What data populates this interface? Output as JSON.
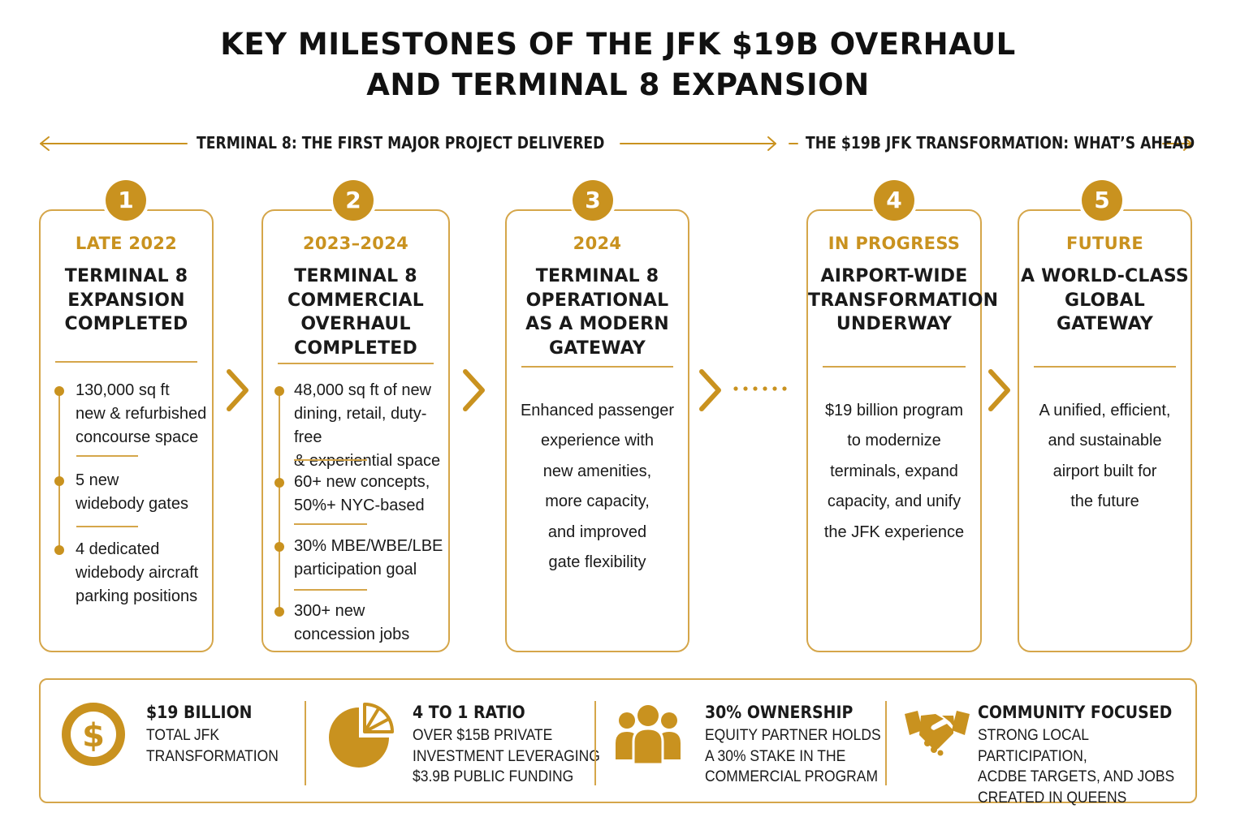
{
  "title": {
    "line1": "KEY MILESTONES OF THE JFK $19B OVERHAUL",
    "line2": "AND TERMINAL 8 EXPANSION"
  },
  "phases": {
    "left": "TERMINAL 8: THE FIRST MAJOR PROJECT DELIVERED",
    "right": "THE $19B JFK TRANSFORMATION: WHAT’S AHEAD"
  },
  "milestones": [
    {
      "number": "1",
      "date": "LATE 2022",
      "heading": "TERMINAL 8\nEXPANSION\nCOMPLETED",
      "bullets": [
        "130,000 sq ft\nnew & refurbished\nconcourse space",
        "5 new\nwidebody gates",
        "4 dedicated\nwidebody aircraft\nparking positions"
      ]
    },
    {
      "number": "2",
      "date": "2023–2024",
      "heading": "TERMINAL 8\nCOMMERCIAL\nOVERHAUL\nCOMPLETED",
      "bullets": [
        "48,000 sq ft of new\ndining, retail, duty-free\n& experiential space",
        "60+ new concepts,\n50%+ NYC-based",
        "30% MBE/WBE/LBE\nparticipation goal",
        "300+ new\nconcession jobs"
      ]
    },
    {
      "number": "3",
      "date": "2024",
      "heading": "TERMINAL 8\nOPERATIONAL\nAS A MODERN\nGATEWAY",
      "body": "Enhanced passenger\nexperience with\nnew amenities,\nmore capacity,\nand improved\ngate flexibility"
    },
    {
      "number": "4",
      "date": "IN PROGRESS",
      "heading": "AIRPORT-WIDE\nTRANSFORMATION\nUNDERWAY",
      "body": "$19 billion program\nto modernize\nterminals, expand\ncapacity, and unify\nthe JFK experience"
    },
    {
      "number": "5",
      "date": "FUTURE",
      "heading": "A WORLD-CLASS\nGLOBAL\nGATEWAY",
      "body": "A unified, efficient,\nand sustainable\nairport built for\nthe future"
    }
  ],
  "stats": [
    {
      "icon": "dollar-coin-icon",
      "title": "$19 BILLION",
      "desc": "TOTAL JFK\nTRANSFORMATION"
    },
    {
      "icon": "pie-chart-icon",
      "title": "4 TO 1 RATIO",
      "desc": "OVER $15B PRIVATE\nINVESTMENT LEVERAGING\n$3.9B PUBLIC FUNDING"
    },
    {
      "icon": "people-group-icon",
      "title": "30% OWNERSHIP",
      "desc": "EQUITY PARTNER HOLDS\nA 30% STAKE IN THE\nCOMMERCIAL PROGRAM"
    },
    {
      "icon": "handshake-icon",
      "title": "COMMUNITY FOCUSED",
      "desc": "STRONG LOCAL PARTICIPATION,\nACDBE TARGETS, AND JOBS\nCREATED IN QUEENS"
    }
  ],
  "colors": {
    "accent": "#c9921f",
    "border": "#d5a64a",
    "text": "#1a1a1a"
  }
}
